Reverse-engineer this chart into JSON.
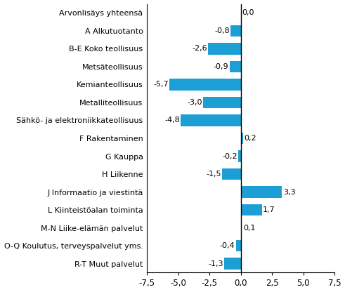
{
  "categories": [
    "R-T Muut palvelut",
    "O-Q Koulutus, terveyspalvelut yms.",
    "M-N Liike-elämän palvelut",
    "L Kiinteistöalan toiminta",
    "J Informaatio ja viestintä",
    "H Liikenne",
    "G Kauppa",
    "F Rakentaminen",
    "Sähkö- ja elektroniikkateollisuus",
    "Metalliteollisuus",
    "Kemianteollisuus",
    "Metsäteollisuus",
    "B-E Koko teollisuus",
    "A Alkutuotanto",
    "Arvonlisäys yhteensä"
  ],
  "values": [
    -1.3,
    -0.4,
    0.1,
    1.7,
    3.3,
    -1.5,
    -0.2,
    0.2,
    -4.8,
    -3.0,
    -5.7,
    -0.9,
    -2.6,
    -0.8,
    0.0
  ],
  "bar_color": "#1b9fd4",
  "xlim": [
    -7.5,
    7.5
  ],
  "xticks": [
    -7.5,
    -5.0,
    -2.5,
    0.0,
    2.5,
    5.0,
    7.5
  ],
  "xtick_labels": [
    "-7,5",
    "-5,0",
    "-2,5",
    "0,0",
    "2,5",
    "5,0",
    "7,5"
  ],
  "value_label_fontsize": 8,
  "category_fontsize": 8,
  "tick_fontsize": 8.5
}
